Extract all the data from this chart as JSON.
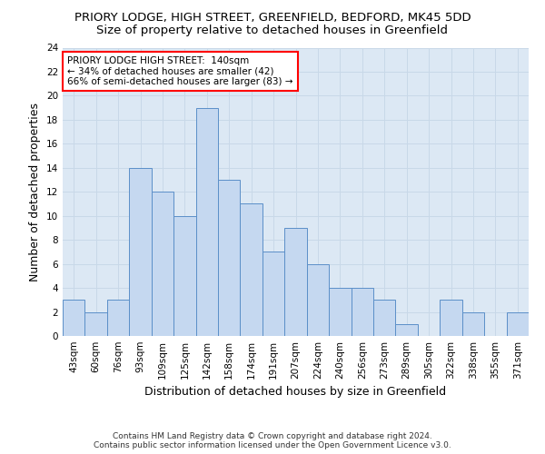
{
  "title": "PRIORY LODGE, HIGH STREET, GREENFIELD, BEDFORD, MK45 5DD",
  "subtitle": "Size of property relative to detached houses in Greenfield",
  "xlabel": "Distribution of detached houses by size in Greenfield",
  "ylabel": "Number of detached properties",
  "categories": [
    "43sqm",
    "60sqm",
    "76sqm",
    "93sqm",
    "109sqm",
    "125sqm",
    "142sqm",
    "158sqm",
    "174sqm",
    "191sqm",
    "207sqm",
    "224sqm",
    "240sqm",
    "256sqm",
    "273sqm",
    "289sqm",
    "305sqm",
    "322sqm",
    "338sqm",
    "355sqm",
    "371sqm"
  ],
  "values": [
    3,
    2,
    3,
    14,
    12,
    10,
    19,
    13,
    11,
    7,
    9,
    6,
    4,
    4,
    3,
    1,
    0,
    3,
    2,
    0,
    2
  ],
  "bar_color": "#c5d8f0",
  "bar_edge_color": "#5b8fc8",
  "ylim": [
    0,
    24
  ],
  "yticks": [
    0,
    2,
    4,
    6,
    8,
    10,
    12,
    14,
    16,
    18,
    20,
    22,
    24
  ],
  "grid_color": "#c8d8e8",
  "plot_bg_color": "#dce8f4",
  "fig_bg_color": "#ffffff",
  "annotation_lines": [
    "PRIORY LODGE HIGH STREET:  140sqm",
    "← 34% of detached houses are smaller (42)",
    "66% of semi-detached houses are larger (83) →"
  ],
  "footer_line1": "Contains HM Land Registry data © Crown copyright and database right 2024.",
  "footer_line2": "Contains public sector information licensed under the Open Government Licence v3.0.",
  "title_fontsize": 9.5,
  "subtitle_fontsize": 9.5,
  "xlabel_fontsize": 9,
  "ylabel_fontsize": 9,
  "tick_fontsize": 7.5,
  "annotation_fontsize": 7.5,
  "footer_fontsize": 6.5
}
